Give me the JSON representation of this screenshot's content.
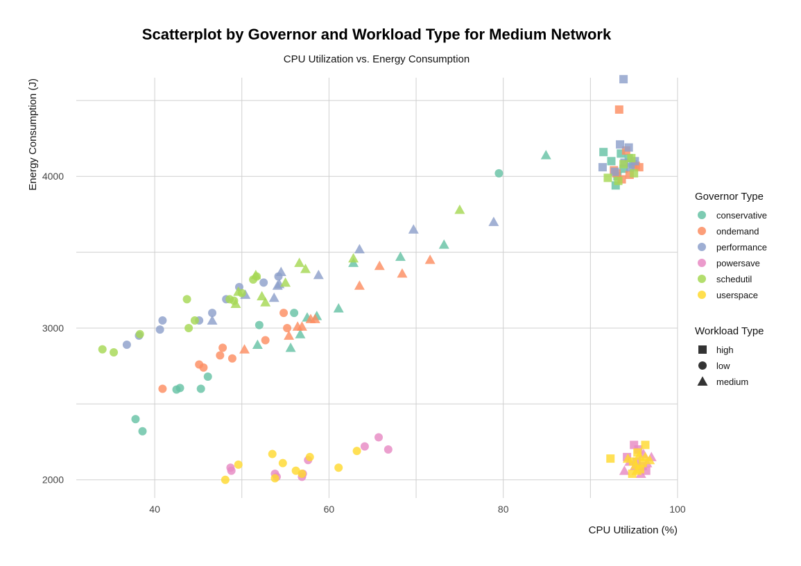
{
  "chart_data": {
    "type": "scatter",
    "title": "Scatterplot by Governor and Workload Type for Medium Network",
    "subtitle": "CPU Utilization vs. Energy Consumption",
    "xlabel": "CPU Utilization (%)",
    "ylabel": "Energy Consumption (J)",
    "xlim": [
      31,
      100
    ],
    "ylim": [
      1880,
      4650
    ],
    "x_ticks": [
      "40",
      "60",
      "80",
      "100"
    ],
    "y_ticks": [
      "2000",
      "3000",
      "4000"
    ],
    "x_tick_values": [
      40,
      60,
      80,
      100
    ],
    "y_tick_values": [
      2000,
      3000,
      4000
    ],
    "grid": true,
    "legend_position": "right",
    "legends": {
      "color_title": "Governor Type",
      "shape_title": "Workload Type",
      "colors": [
        {
          "name": "conservative",
          "color": "#66c2a5"
        },
        {
          "name": "ondemand",
          "color": "#fc8d62"
        },
        {
          "name": "performance",
          "color": "#8da0cb"
        },
        {
          "name": "powersave",
          "color": "#e78ac3"
        },
        {
          "name": "schedutil",
          "color": "#a6d854"
        },
        {
          "name": "userspace",
          "color": "#ffd92f"
        }
      ],
      "shapes": [
        {
          "name": "high",
          "shape": "square"
        },
        {
          "name": "low",
          "shape": "circle"
        },
        {
          "name": "medium",
          "shape": "triangle"
        }
      ]
    },
    "series": [
      {
        "governor": "conservative",
        "workload": "low",
        "points": [
          [
            37.8,
            2400
          ],
          [
            38.6,
            2320
          ],
          [
            42.5,
            2595
          ],
          [
            42.9,
            2605
          ],
          [
            45.3,
            2600
          ],
          [
            46.1,
            2680
          ],
          [
            52.0,
            3020
          ],
          [
            56.0,
            3100
          ],
          [
            79.5,
            4020
          ]
        ]
      },
      {
        "governor": "conservative",
        "workload": "medium",
        "points": [
          [
            51.8,
            2890
          ],
          [
            55.6,
            2870
          ],
          [
            56.7,
            2960
          ],
          [
            57.5,
            3070
          ],
          [
            58.6,
            3080
          ],
          [
            61.1,
            3130
          ],
          [
            62.8,
            3430
          ],
          [
            68.2,
            3470
          ],
          [
            73.2,
            3550
          ],
          [
            84.9,
            4140
          ]
        ]
      },
      {
        "governor": "conservative",
        "workload": "high",
        "points": [
          [
            91.5,
            4160
          ],
          [
            92.4,
            4100
          ],
          [
            92.9,
            3940
          ],
          [
            93.1,
            4000
          ],
          [
            93.8,
            4050
          ],
          [
            94.4,
            4120
          ],
          [
            94.9,
            4080
          ],
          [
            93.5,
            4150
          ]
        ]
      },
      {
        "governor": "ondemand",
        "workload": "low",
        "points": [
          [
            40.9,
            2600
          ],
          [
            45.1,
            2760
          ],
          [
            45.6,
            2740
          ],
          [
            47.5,
            2820
          ],
          [
            47.8,
            2870
          ],
          [
            48.9,
            2800
          ],
          [
            52.7,
            2920
          ],
          [
            54.8,
            3100
          ],
          [
            55.2,
            3000
          ]
        ]
      },
      {
        "governor": "ondemand",
        "workload": "medium",
        "points": [
          [
            50.3,
            2860
          ],
          [
            55.4,
            2950
          ],
          [
            56.4,
            3010
          ],
          [
            56.9,
            3010
          ],
          [
            57.9,
            3060
          ],
          [
            58.4,
            3060
          ],
          [
            63.5,
            3280
          ],
          [
            65.8,
            3410
          ],
          [
            68.4,
            3360
          ],
          [
            71.6,
            3450
          ]
        ]
      },
      {
        "governor": "ondemand",
        "workload": "high",
        "points": [
          [
            93.3,
            4440
          ],
          [
            92.7,
            4040
          ],
          [
            93.6,
            3980
          ],
          [
            94.1,
            4170
          ],
          [
            94.5,
            4010
          ],
          [
            95.2,
            4070
          ],
          [
            95.6,
            4060
          ],
          [
            93.0,
            4020
          ]
        ]
      },
      {
        "governor": "performance",
        "workload": "low",
        "points": [
          [
            36.8,
            2890
          ],
          [
            38.2,
            2950
          ],
          [
            40.6,
            2990
          ],
          [
            40.9,
            3050
          ],
          [
            45.1,
            3050
          ],
          [
            46.6,
            3100
          ],
          [
            48.2,
            3190
          ],
          [
            49.7,
            3270
          ],
          [
            52.5,
            3300
          ],
          [
            54.2,
            3340
          ]
        ]
      },
      {
        "governor": "performance",
        "workload": "medium",
        "points": [
          [
            46.6,
            3050
          ],
          [
            50.4,
            3220
          ],
          [
            53.7,
            3200
          ],
          [
            54.1,
            3280
          ],
          [
            54.3,
            3290
          ],
          [
            54.5,
            3370
          ],
          [
            58.8,
            3350
          ],
          [
            63.5,
            3520
          ],
          [
            69.7,
            3650
          ],
          [
            78.9,
            3700
          ]
        ]
      },
      {
        "governor": "performance",
        "workload": "high",
        "points": [
          [
            93.8,
            4640
          ],
          [
            91.4,
            4060
          ],
          [
            93.4,
            4210
          ],
          [
            93.9,
            4090
          ],
          [
            94.4,
            4190
          ],
          [
            95.1,
            4100
          ],
          [
            94.6,
            4060
          ],
          [
            92.8,
            4030
          ]
        ]
      },
      {
        "governor": "powersave",
        "workload": "low",
        "points": [
          [
            48.7,
            2080
          ],
          [
            48.8,
            2060
          ],
          [
            53.8,
            2040
          ],
          [
            54.0,
            2020
          ],
          [
            56.9,
            2020
          ],
          [
            57.0,
            2040
          ],
          [
            57.6,
            2130
          ],
          [
            64.1,
            2220
          ],
          [
            65.7,
            2280
          ],
          [
            66.8,
            2200
          ]
        ]
      },
      {
        "governor": "powersave",
        "workload": "medium",
        "points": [
          [
            93.9,
            2060
          ],
          [
            94.5,
            2120
          ],
          [
            95.1,
            2090
          ],
          [
            95.8,
            2040
          ],
          [
            96.5,
            2110
          ],
          [
            97.0,
            2150
          ],
          [
            96.1,
            2170
          ]
        ]
      },
      {
        "governor": "powersave",
        "workload": "high",
        "points": [
          [
            94.2,
            2150
          ],
          [
            95.0,
            2230
          ],
          [
            95.5,
            2200
          ],
          [
            96.0,
            2090
          ],
          [
            96.4,
            2060
          ],
          [
            95.3,
            2120
          ]
        ]
      },
      {
        "governor": "schedutil",
        "workload": "low",
        "points": [
          [
            34.0,
            2860
          ],
          [
            35.3,
            2840
          ],
          [
            38.3,
            2960
          ],
          [
            43.7,
            3190
          ],
          [
            43.9,
            3000
          ],
          [
            44.6,
            3050
          ],
          [
            48.6,
            3190
          ],
          [
            49.1,
            3180
          ],
          [
            50.0,
            3230
          ],
          [
            51.3,
            3320
          ],
          [
            51.7,
            3340
          ]
        ]
      },
      {
        "governor": "schedutil",
        "workload": "medium",
        "points": [
          [
            49.3,
            3160
          ],
          [
            49.6,
            3240
          ],
          [
            51.6,
            3350
          ],
          [
            52.3,
            3210
          ],
          [
            52.7,
            3170
          ],
          [
            55.0,
            3300
          ],
          [
            56.6,
            3430
          ],
          [
            57.3,
            3390
          ],
          [
            62.8,
            3460
          ],
          [
            75.0,
            3780
          ]
        ]
      },
      {
        "governor": "schedutil",
        "workload": "high",
        "points": [
          [
            92.0,
            3990
          ],
          [
            93.8,
            4080
          ],
          [
            94.7,
            4120
          ],
          [
            95.0,
            4020
          ],
          [
            93.2,
            3970
          ]
        ]
      },
      {
        "governor": "userspace",
        "workload": "low",
        "points": [
          [
            48.1,
            2000
          ],
          [
            49.6,
            2100
          ],
          [
            53.5,
            2170
          ],
          [
            53.8,
            2010
          ],
          [
            54.7,
            2110
          ],
          [
            56.2,
            2060
          ],
          [
            56.9,
            2040
          ],
          [
            57.8,
            2150
          ],
          [
            61.1,
            2080
          ],
          [
            63.2,
            2190
          ]
        ]
      },
      {
        "governor": "userspace",
        "workload": "medium",
        "points": [
          [
            94.3,
            2140
          ],
          [
            95.2,
            2100
          ],
          [
            95.6,
            2160
          ],
          [
            96.3,
            2150
          ],
          [
            95.3,
            2060
          ],
          [
            96.8,
            2130
          ]
        ]
      },
      {
        "governor": "userspace",
        "workload": "high",
        "points": [
          [
            92.3,
            2140
          ],
          [
            94.8,
            2040
          ],
          [
            95.4,
            2180
          ],
          [
            96.3,
            2230
          ],
          [
            96.0,
            2110
          ],
          [
            95.7,
            2070
          ],
          [
            94.9,
            2120
          ]
        ]
      }
    ]
  }
}
